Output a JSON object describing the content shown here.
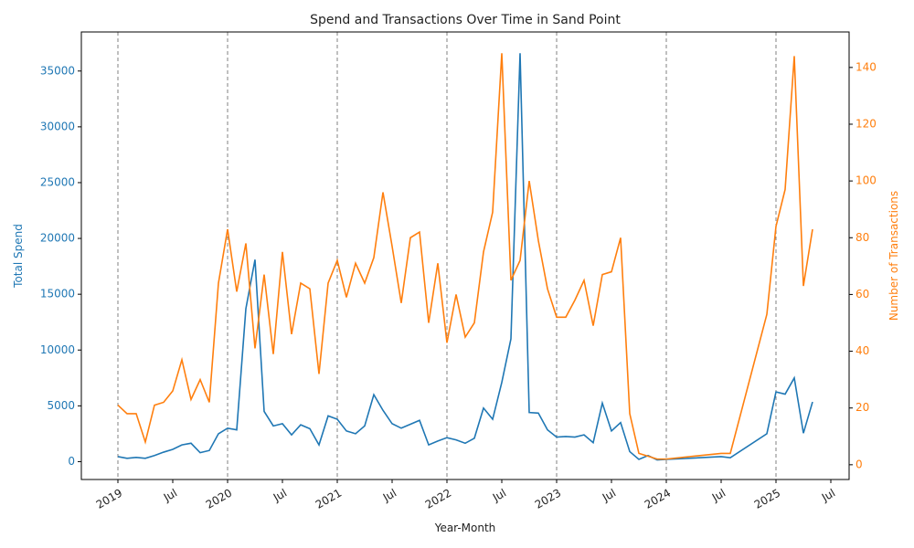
{
  "chart_data": {
    "type": "line",
    "title": "Spend and Transactions Over Time in Sand Point",
    "x_label": "Year-Month",
    "y_label": "Total Spend",
    "y2_label": "Number of Transactions",
    "x": [
      "2019-01",
      "2019-02",
      "2019-03",
      "2019-04",
      "2019-05",
      "2019-06",
      "2019-07",
      "2019-08",
      "2019-09",
      "2019-10",
      "2019-11",
      "2019-12",
      "2020-01",
      "2020-02",
      "2020-03",
      "2020-04",
      "2020-05",
      "2020-06",
      "2020-07",
      "2020-08",
      "2020-09",
      "2020-10",
      "2020-11",
      "2020-12",
      "2021-01",
      "2021-02",
      "2021-03",
      "2021-04",
      "2021-05",
      "2021-06",
      "2021-07",
      "2021-08",
      "2021-09",
      "2021-10",
      "2021-11",
      "2021-12",
      "2022-01",
      "2022-02",
      "2022-03",
      "2022-04",
      "2022-05",
      "2022-06",
      "2022-07",
      "2022-08",
      "2022-09",
      "2022-10",
      "2022-11",
      "2022-12",
      "2023-01",
      "2023-02",
      "2023-03",
      "2023-04",
      "2023-05",
      "2023-06",
      "2023-07",
      "2023-08",
      "2023-09",
      "2023-10",
      "2023-11",
      "2023-12",
      "2024-01",
      "2024-07",
      "2024-08",
      "2024-12",
      "2025-01",
      "2025-02",
      "2025-03",
      "2025-04",
      "2025-05"
    ],
    "series": [
      {
        "name": "Total Spend",
        "color": "#1f77b4",
        "axis": "y",
        "values": [
          450,
          300,
          380,
          300,
          550,
          850,
          1100,
          1500,
          1650,
          800,
          1000,
          2500,
          3000,
          2850,
          13700,
          18100,
          4500,
          3200,
          3400,
          2400,
          3300,
          2950,
          1500,
          4100,
          3800,
          2750,
          2500,
          3200,
          6000,
          4600,
          3400,
          3000,
          3350,
          3700,
          1500,
          1850,
          2150,
          1950,
          1650,
          2100,
          4800,
          3800,
          7100,
          11000,
          36600,
          4400,
          4350,
          2850,
          2200,
          2250,
          2200,
          2400,
          1700,
          5250,
          2750,
          3500,
          900,
          200,
          550,
          150,
          200,
          450,
          350,
          2500,
          6250,
          6050,
          7500,
          2550,
          5350
        ]
      },
      {
        "name": "Number of Transactions",
        "color": "#ff7f0e",
        "axis": "y2",
        "values": [
          21,
          18,
          18,
          8,
          21,
          22,
          26,
          37,
          23,
          30,
          22,
          64,
          83,
          61,
          78,
          41,
          67,
          39,
          75,
          46,
          64,
          62,
          32,
          64,
          72,
          59,
          71,
          64,
          73,
          96,
          77,
          57,
          80,
          82,
          50,
          71,
          43,
          60,
          45,
          50,
          75,
          89,
          145,
          65,
          72,
          100,
          79,
          62,
          52,
          52,
          58,
          65,
          49,
          67,
          68,
          80,
          18,
          4,
          3,
          2,
          2,
          4,
          4,
          53,
          84,
          97,
          144,
          63,
          83
        ]
      }
    ],
    "xlim": [
      "2018-09",
      "2025-09"
    ],
    "xticks": [
      {
        "value": "2019-01",
        "label": "2019"
      },
      {
        "value": "2019-07",
        "label": "Jul"
      },
      {
        "value": "2020-01",
        "label": "2020"
      },
      {
        "value": "2020-07",
        "label": "Jul"
      },
      {
        "value": "2021-01",
        "label": "2021"
      },
      {
        "value": "2021-07",
        "label": "Jul"
      },
      {
        "value": "2022-01",
        "label": "2022"
      },
      {
        "value": "2022-07",
        "label": "Jul"
      },
      {
        "value": "2023-01",
        "label": "2023"
      },
      {
        "value": "2023-07",
        "label": "Jul"
      },
      {
        "value": "2024-01",
        "label": "2024"
      },
      {
        "value": "2024-07",
        "label": "Jul"
      },
      {
        "value": "2025-01",
        "label": "2025"
      },
      {
        "value": "2025-07",
        "label": "Jul"
      }
    ],
    "ylim": [
      -1600,
      38500
    ],
    "yticks": [
      0,
      5000,
      10000,
      15000,
      20000,
      25000,
      30000,
      35000
    ],
    "y2lim": [
      -5.2,
      152.5
    ],
    "y2ticks": [
      0,
      20,
      40,
      60,
      80,
      100,
      120,
      140
    ],
    "vlines": [
      "2019-01",
      "2020-01",
      "2021-01",
      "2022-01",
      "2023-01",
      "2024-01",
      "2025-01"
    ],
    "vline_color": "#808080"
  }
}
